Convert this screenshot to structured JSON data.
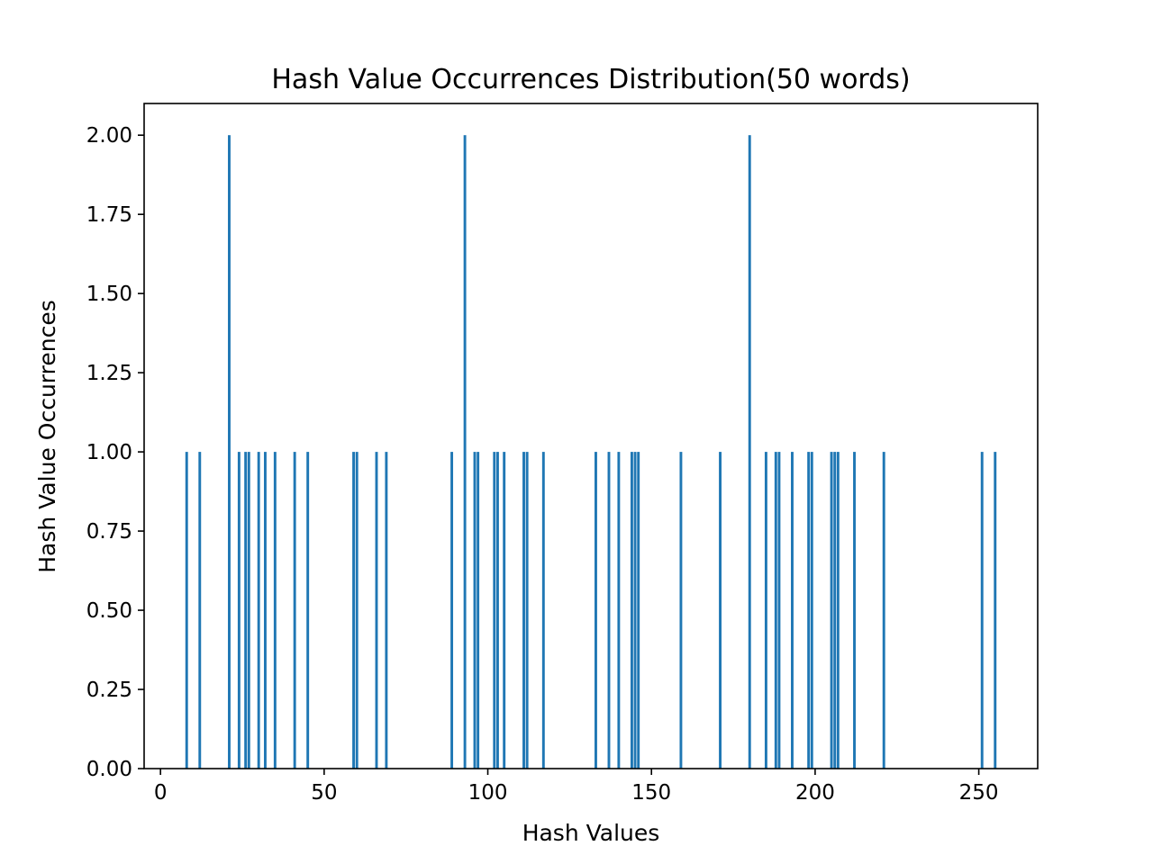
{
  "chart_data": {
    "type": "bar",
    "title": "Hash Value Occurrences Distribution(50 words)",
    "xlabel": "Hash Values",
    "ylabel": "Hash Value Occurrences",
    "xlim": [
      -5,
      268
    ],
    "ylim": [
      0,
      2.1
    ],
    "xticks": [
      0,
      50,
      100,
      150,
      200,
      250
    ],
    "xtick_labels": [
      "0",
      "50",
      "100",
      "150",
      "200",
      "250"
    ],
    "yticks": [
      0,
      0.25,
      0.5,
      0.75,
      1.0,
      1.25,
      1.5,
      1.75,
      2.0
    ],
    "ytick_labels": [
      "0.00",
      "0.25",
      "0.50",
      "0.75",
      "1.00",
      "1.25",
      "1.50",
      "1.75",
      "2.00"
    ],
    "grid": false,
    "bar_color": "#1f77b4",
    "x": [
      8,
      12,
      21,
      24,
      26,
      27,
      30,
      32,
      35,
      41,
      45,
      59,
      60,
      66,
      69,
      89,
      93,
      96,
      97,
      102,
      103,
      105,
      111,
      112,
      117,
      133,
      137,
      140,
      144,
      145,
      146,
      159,
      171,
      180,
      185,
      188,
      189,
      193,
      198,
      199,
      205,
      206,
      207,
      212,
      221,
      251,
      255
    ],
    "values": [
      1,
      1,
      2,
      1,
      1,
      1,
      1,
      1,
      1,
      1,
      1,
      1,
      1,
      1,
      1,
      1,
      2,
      1,
      1,
      1,
      1,
      1,
      1,
      1,
      1,
      1,
      1,
      1,
      1,
      1,
      1,
      1,
      1,
      2,
      1,
      1,
      1,
      1,
      1,
      1,
      1,
      1,
      1,
      1,
      1,
      1,
      1
    ]
  }
}
